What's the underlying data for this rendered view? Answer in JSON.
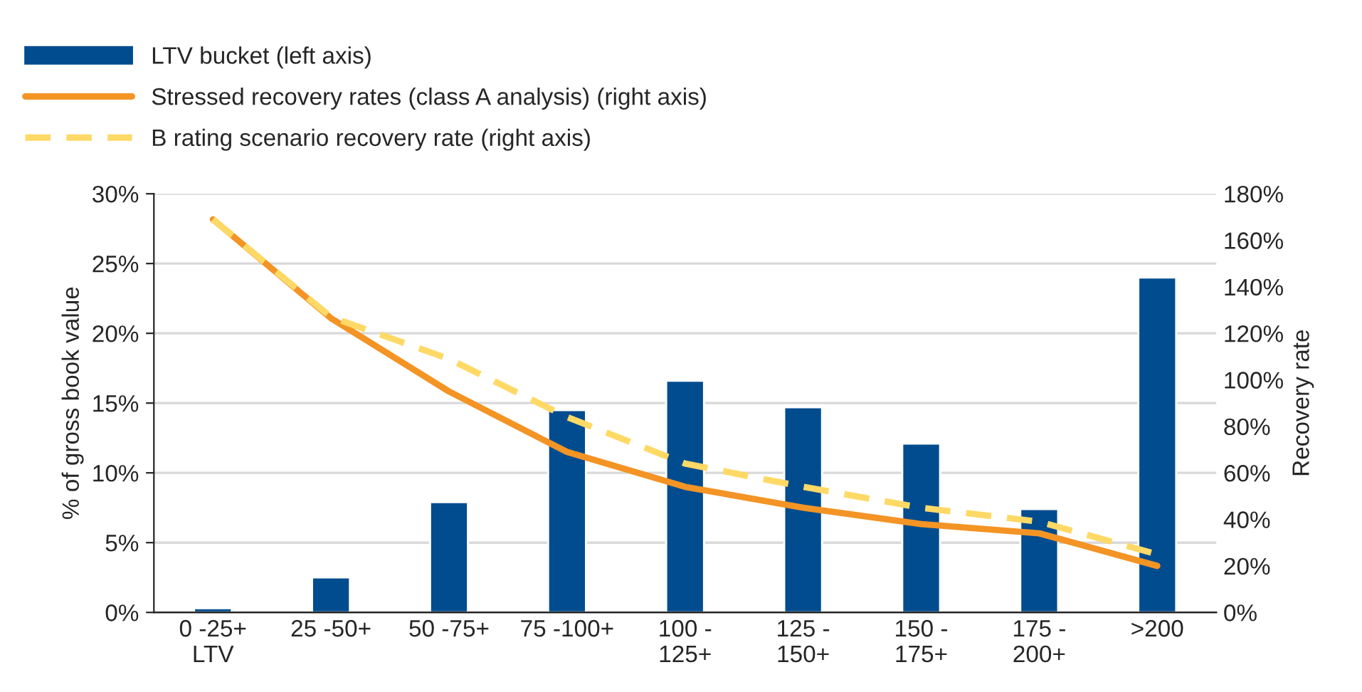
{
  "chart_data": {
    "type": "bar",
    "ylabel": "% of gross book value",
    "y2label": "Recovery rate",
    "categories": [
      "0 -25+\nLTV",
      "25 -50+",
      "50 -75+",
      "75 -100+",
      "100 -\n125+",
      "125 -\n150+",
      "150 -\n175+",
      "175 -\n200+",
      ">200"
    ],
    "series": [
      {
        "name": "LTV bucket (left axis)",
        "color": "#004c8f",
        "values": [
          0.3,
          2.5,
          7.9,
          14.5,
          16.6,
          14.7,
          12.1,
          7.4,
          24.0
        ]
      },
      {
        "name": "Stressed recovery rates (class A analysis) (right axis)",
        "type": "line",
        "axis": "y2",
        "color": "#f39425",
        "line_style": "solid",
        "values": [
          169,
          126.5,
          95,
          69,
          54,
          45,
          38,
          34,
          20
        ]
      },
      {
        "name": "B rating scenario recovery rate (right axis)",
        "type": "line",
        "axis": "y2",
        "color": "#ffd966",
        "line_style": "dashed",
        "values": [
          169,
          127,
          109,
          84,
          64,
          54,
          45,
          39,
          25
        ]
      }
    ],
    "ylim": [
      0,
      30
    ],
    "yticks": [
      {
        "value": 0,
        "label": "0%"
      },
      {
        "value": 5,
        "label": "5%"
      },
      {
        "value": 10,
        "label": "10%"
      },
      {
        "value": 15,
        "label": "15%"
      },
      {
        "value": 20,
        "label": "20%"
      },
      {
        "value": 25,
        "label": "25%"
      },
      {
        "value": 30,
        "label": "30%"
      }
    ],
    "y2lim": [
      0,
      180
    ],
    "y2ticks": [
      {
        "value": 0,
        "label": "0%"
      },
      {
        "value": 20,
        "label": "20%"
      },
      {
        "value": 40,
        "label": "40%"
      },
      {
        "value": 60,
        "label": "60%"
      },
      {
        "value": 80,
        "label": "80%"
      },
      {
        "value": 100,
        "label": "100%"
      },
      {
        "value": 120,
        "label": "120%"
      },
      {
        "value": 140,
        "label": "140%"
      },
      {
        "value": 160,
        "label": "160%"
      },
      {
        "value": 180,
        "label": "180%"
      }
    ],
    "grid": "y",
    "legend": "top left",
    "marker": "none"
  }
}
